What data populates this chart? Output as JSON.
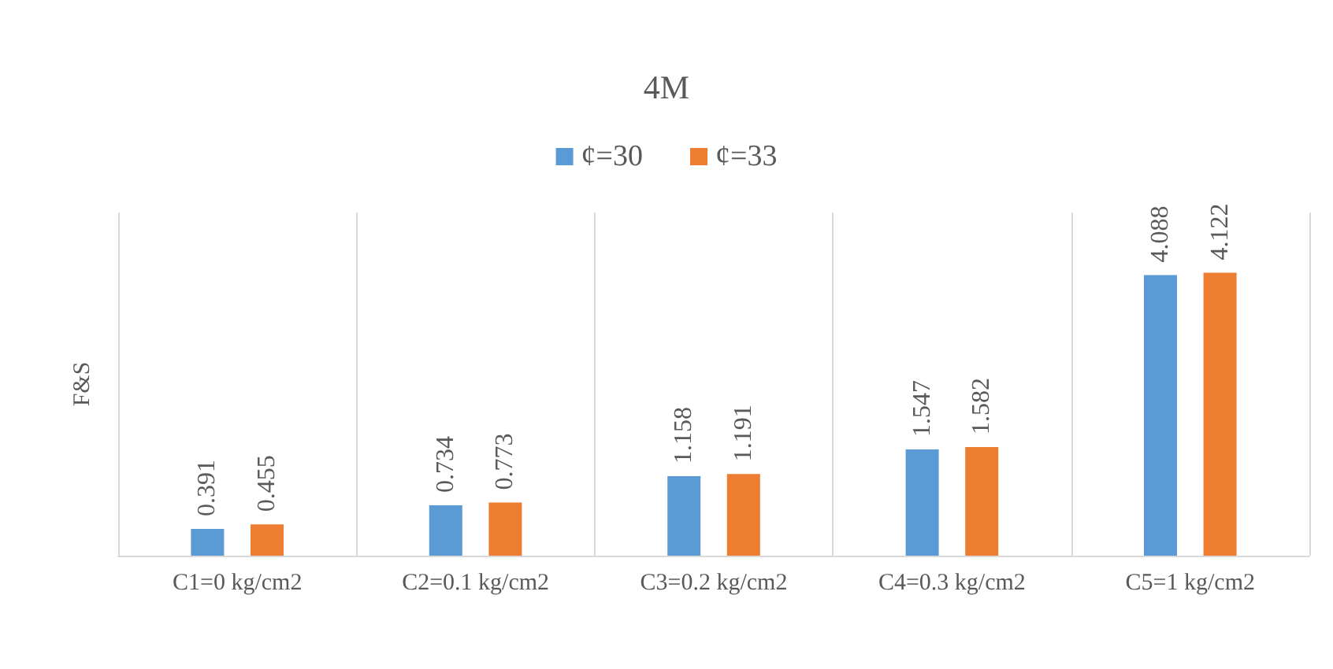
{
  "chart_data": {
    "type": "bar",
    "title": "4M",
    "ylabel": "F&S",
    "categories": [
      "C1=0 kg/cm2",
      "C2=0.1 kg/cm2",
      "C3=0.2 kg/cm2",
      "C4=0.3 kg/cm2",
      "C5=1 kg/cm2"
    ],
    "series": [
      {
        "name": "¢=30",
        "color": "#5b9bd5",
        "values": [
          0.391,
          0.734,
          1.158,
          1.547,
          4.088
        ]
      },
      {
        "name": "¢=33",
        "color": "#ed7d31",
        "values": [
          0.455,
          0.773,
          1.191,
          1.582,
          4.122
        ]
      }
    ],
    "data_labels": true,
    "grid": "x",
    "legend": "top",
    "tick_labels": "x"
  }
}
